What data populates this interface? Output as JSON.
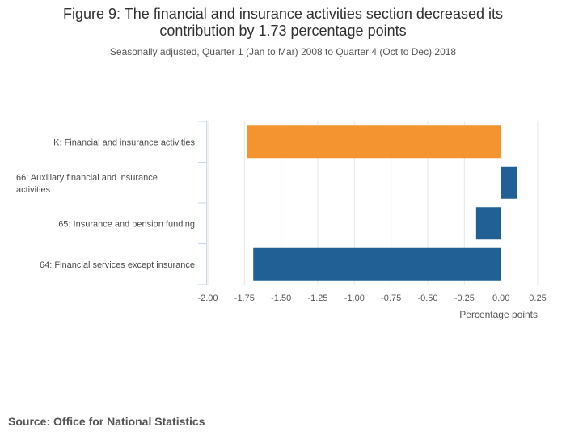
{
  "chart_data": {
    "type": "bar",
    "orientation": "horizontal",
    "title": "Figure 9: The financial and insurance activities section decreased its contribution by 1.73 percentage points",
    "subtitle": "Seasonally adjusted, Quarter 1 (Jan to Mar) 2008 to Quarter 4 (Oct to Dec) 2018",
    "xlabel": "Percentage points",
    "ylabel": "",
    "xlim": [
      -2.0,
      0.25
    ],
    "xticks": [
      "-2.00",
      "-1.75",
      "-1.50",
      "-1.25",
      "-1.00",
      "-0.75",
      "-0.50",
      "-0.25",
      "0.00",
      "0.25"
    ],
    "xtick_values": [
      -2.0,
      -1.75,
      -1.5,
      -1.25,
      -1.0,
      -0.75,
      -0.5,
      -0.25,
      0.0,
      0.25
    ],
    "categories": [
      "K: Financial and insurance activities",
      "66: Auxiliary financial and insurance activities",
      "65: Insurance and pension funding",
      "64: Financial services except insurance"
    ],
    "category_lines": [
      [
        "K: Financial and insurance activities"
      ],
      [
        "66: Auxiliary financial and insurance",
        "activities"
      ],
      [
        "65: Insurance and pension funding"
      ],
      [
        "64: Financial services except insurance"
      ]
    ],
    "values": [
      -1.73,
      0.11,
      -0.17,
      -1.69
    ],
    "colors": [
      "#f39431",
      "#206095",
      "#206095",
      "#206095"
    ],
    "grid": true
  },
  "source": {
    "text": "Source: Office for National Statistics"
  }
}
